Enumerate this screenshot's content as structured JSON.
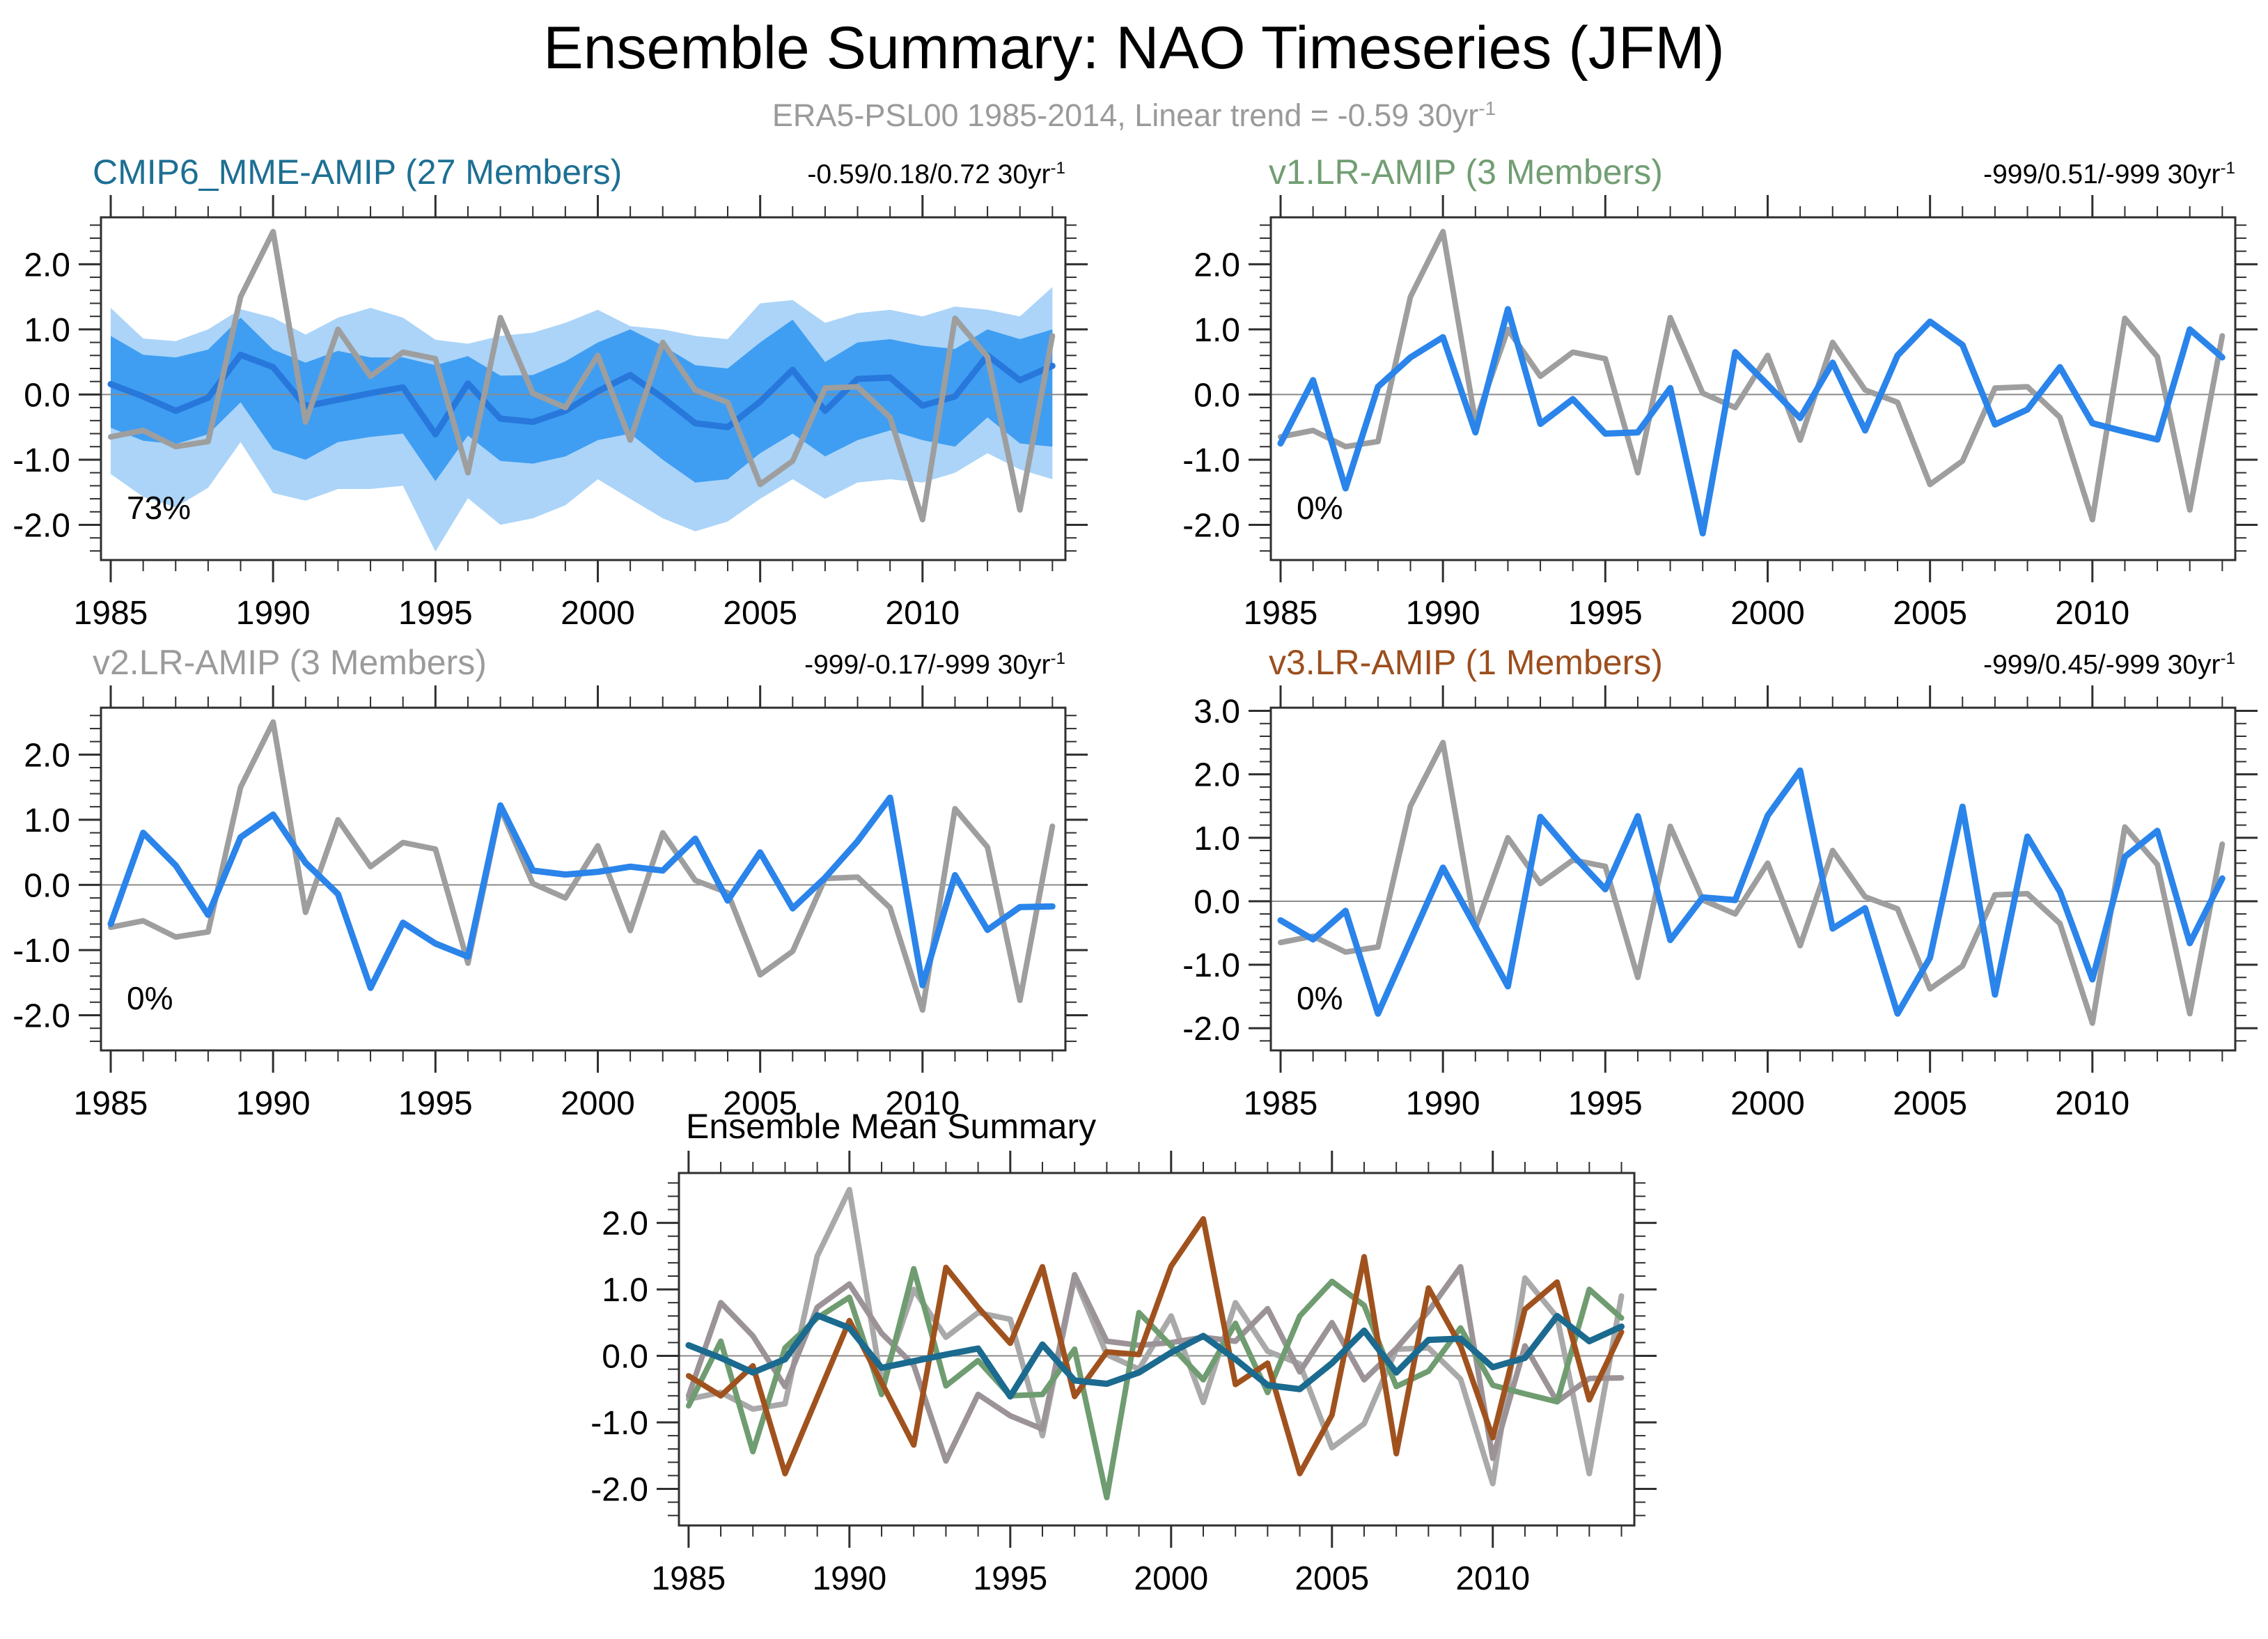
{
  "header": {
    "title": "Ensemble Summary: NAO Timeseries (JFM)",
    "subtitle": "ERA5-PSL00 1985-2014, Linear trend = -0.59 30yr",
    "subtitle_sup": "-1"
  },
  "years": [
    1985,
    1986,
    1987,
    1988,
    1989,
    1990,
    1991,
    1992,
    1993,
    1994,
    1995,
    1996,
    1997,
    1998,
    1999,
    2000,
    2001,
    2002,
    2003,
    2004,
    2005,
    2006,
    2007,
    2008,
    2009,
    2010,
    2011,
    2012,
    2013,
    2014
  ],
  "chart_data": [
    {
      "type": "line",
      "id": "cmip6-mme-amip",
      "title": "CMIP6_MME-AMIP (27 Members)",
      "title_color": "#1d6f93",
      "trend": "-0.59/0.18/0.72 30yr",
      "trend_sup": "-1",
      "pct_label": "73%",
      "ylim": [
        -2.54,
        2.72
      ],
      "yticks": [
        -2,
        -1,
        0,
        1,
        2
      ],
      "xticks": [
        1985,
        1990,
        1995,
        2000,
        2005,
        2010
      ],
      "bands": [
        {
          "name": "ensemble-spread-outer",
          "color": "#abd4f8",
          "hi": [
            1.33,
            0.86,
            0.82,
            1.0,
            1.31,
            1.18,
            0.92,
            1.18,
            1.33,
            1.18,
            0.84,
            0.78,
            0.9,
            0.95,
            1.1,
            1.3,
            1.05,
            1.0,
            0.9,
            0.85,
            1.4,
            1.45,
            1.1,
            1.25,
            1.3,
            1.2,
            1.35,
            1.3,
            1.2,
            1.65
          ],
          "lo": [
            -1.22,
            -1.57,
            -1.73,
            -1.43,
            -0.73,
            -1.51,
            -1.63,
            -1.45,
            -1.45,
            -1.4,
            -2.41,
            -1.59,
            -2.0,
            -1.9,
            -1.7,
            -1.3,
            -1.6,
            -1.9,
            -2.1,
            -1.95,
            -1.6,
            -1.3,
            -1.6,
            -1.35,
            -1.3,
            -1.35,
            -1.2,
            -0.9,
            -1.15,
            -1.3
          ]
        },
        {
          "name": "ensemble-spread-inner",
          "color": "#3f9ef2",
          "hi": [
            0.9,
            0.61,
            0.57,
            0.69,
            1.18,
            0.69,
            0.49,
            0.67,
            0.57,
            0.57,
            0.45,
            0.59,
            0.29,
            0.3,
            0.51,
            0.8,
            1.0,
            0.75,
            0.45,
            0.4,
            0.8,
            1.15,
            0.5,
            0.8,
            0.85,
            0.75,
            0.7,
            1.0,
            0.85,
            1.0
          ],
          "lo": [
            -0.51,
            -0.71,
            -0.76,
            -0.61,
            -0.12,
            -0.84,
            -1.0,
            -0.73,
            -0.65,
            -0.6,
            -1.33,
            -0.63,
            -1.02,
            -1.06,
            -0.95,
            -0.7,
            -0.6,
            -1.0,
            -1.35,
            -1.3,
            -0.9,
            -0.6,
            -0.95,
            -0.7,
            -0.55,
            -0.7,
            -0.8,
            -0.35,
            -0.75,
            -0.8
          ]
        }
      ],
      "series": [
        {
          "name": "ensemble-mean",
          "color": "#2878dc",
          "width": 9,
          "values": [
            0.16,
            -0.03,
            -0.25,
            -0.05,
            0.61,
            0.42,
            -0.18,
            -0.08,
            0.02,
            0.11,
            -0.61,
            0.17,
            -0.37,
            -0.42,
            -0.25,
            0.05,
            0.3,
            -0.05,
            -0.44,
            -0.5,
            -0.11,
            0.38,
            -0.25,
            0.24,
            0.26,
            -0.17,
            -0.03,
            0.6,
            0.22,
            0.44
          ]
        },
        {
          "name": "era5-obs",
          "color": "#9e9e9e",
          "width": 8,
          "values": [
            -0.65,
            -0.55,
            -0.8,
            -0.72,
            1.5,
            2.5,
            -0.42,
            1.0,
            0.28,
            0.65,
            0.55,
            -1.2,
            1.18,
            0.02,
            -0.2,
            0.6,
            -0.7,
            0.8,
            0.07,
            -0.12,
            -1.38,
            -1.02,
            0.1,
            0.12,
            -0.35,
            -1.92,
            1.17,
            0.58,
            -1.77,
            0.9
          ]
        }
      ]
    },
    {
      "type": "line",
      "id": "v1-lr-amip",
      "title": "v1.LR-AMIP (3 Members)",
      "title_color": "#719e73",
      "trend": "-999/0.51/-999 30yr",
      "trend_sup": "-1",
      "pct_label": "0%",
      "ylim": [
        -2.54,
        2.72
      ],
      "yticks": [
        -2,
        -1,
        0,
        1,
        2
      ],
      "xticks": [
        1985,
        1990,
        1995,
        2000,
        2005,
        2010
      ],
      "bands": [],
      "series": [
        {
          "name": "era5-obs",
          "color": "#9e9e9e",
          "width": 8,
          "values": [
            -0.65,
            -0.55,
            -0.8,
            -0.72,
            1.5,
            2.5,
            -0.42,
            1.0,
            0.28,
            0.65,
            0.55,
            -1.2,
            1.18,
            0.02,
            -0.2,
            0.6,
            -0.7,
            0.8,
            0.07,
            -0.12,
            -1.38,
            -1.02,
            0.1,
            0.12,
            -0.35,
            -1.92,
            1.17,
            0.58,
            -1.77,
            0.9
          ]
        },
        {
          "name": "v1-ensemble-mean",
          "color": "#2a84ea",
          "width": 9,
          "values": [
            -0.75,
            0.22,
            -1.44,
            0.12,
            0.57,
            0.88,
            -0.58,
            1.31,
            -0.45,
            -0.07,
            -0.6,
            -0.58,
            0.1,
            -2.13,
            0.65,
            0.15,
            -0.36,
            0.49,
            -0.55,
            0.6,
            1.12,
            0.76,
            -0.46,
            -0.23,
            0.42,
            -0.44,
            -0.57,
            -0.69,
            1.0,
            0.57
          ]
        }
      ]
    },
    {
      "type": "line",
      "id": "v2-lr-amip",
      "title": "v2.LR-AMIP (3 Members)",
      "title_color": "#9b9b9b",
      "trend": "-999/-0.17/-999 30yr",
      "trend_sup": "-1",
      "pct_label": "0%",
      "ylim": [
        -2.54,
        2.72
      ],
      "yticks": [
        -2,
        -1,
        0,
        1,
        2
      ],
      "xticks": [
        1985,
        1990,
        1995,
        2000,
        2005,
        2010
      ],
      "bands": [],
      "series": [
        {
          "name": "era5-obs",
          "color": "#9e9e9e",
          "width": 8,
          "values": [
            -0.65,
            -0.55,
            -0.8,
            -0.72,
            1.5,
            2.5,
            -0.42,
            1.0,
            0.28,
            0.65,
            0.55,
            -1.2,
            1.18,
            0.02,
            -0.2,
            0.6,
            -0.7,
            0.8,
            0.07,
            -0.12,
            -1.38,
            -1.02,
            0.1,
            0.12,
            -0.35,
            -1.92,
            1.17,
            0.58,
            -1.77,
            0.9
          ]
        },
        {
          "name": "v2-ensemble-mean",
          "color": "#2a84ea",
          "width": 9,
          "values": [
            -0.6,
            0.8,
            0.3,
            -0.46,
            0.73,
            1.08,
            0.34,
            -0.14,
            -1.58,
            -0.58,
            -0.9,
            -1.1,
            1.22,
            0.22,
            0.16,
            0.2,
            0.28,
            0.22,
            0.71,
            -0.24,
            0.5,
            -0.36,
            0.11,
            0.67,
            1.34,
            -1.54,
            0.15,
            -0.69,
            -0.34,
            -0.33
          ]
        }
      ]
    },
    {
      "type": "line",
      "id": "v3-lr-amip",
      "title": "v3.LR-AMIP (1 Members)",
      "title_color": "#9c4e1d",
      "trend": "-999/0.45/-999 30yr",
      "trend_sup": "-1",
      "pct_label": "0%",
      "ylim": [
        -2.35,
        3.05
      ],
      "yticks": [
        -2,
        -1,
        0,
        1,
        2,
        3
      ],
      "xticks": [
        1985,
        1990,
        1995,
        2000,
        2005,
        2010
      ],
      "bands": [],
      "series": [
        {
          "name": "era5-obs",
          "color": "#9e9e9e",
          "width": 8,
          "values": [
            -0.65,
            -0.55,
            -0.8,
            -0.72,
            1.5,
            2.5,
            -0.42,
            1.0,
            0.28,
            0.65,
            0.55,
            -1.2,
            1.18,
            0.02,
            -0.2,
            0.6,
            -0.7,
            0.8,
            0.07,
            -0.12,
            -1.38,
            -1.02,
            0.1,
            0.12,
            -0.35,
            -1.92,
            1.17,
            0.58,
            -1.77,
            0.9
          ]
        },
        {
          "name": "v3-ensemble-mean",
          "color": "#2a84ea",
          "width": 9,
          "values": [
            -0.3,
            -0.6,
            -0.15,
            -1.77,
            -0.62,
            0.53,
            -0.4,
            -1.34,
            1.33,
            0.73,
            0.19,
            1.34,
            -0.61,
            0.06,
            0.02,
            1.35,
            2.06,
            -0.43,
            -0.11,
            -1.77,
            -0.89,
            1.49,
            -1.47,
            1.02,
            0.15,
            -1.23,
            0.7,
            1.11,
            -0.66,
            0.36
          ]
        }
      ]
    },
    {
      "type": "line",
      "id": "ensemble-mean-summary",
      "title": "Ensemble Mean Summary",
      "title_color": "#000000",
      "trend": "",
      "trend_sup": "",
      "pct_label": "",
      "ylim": [
        -2.55,
        2.75
      ],
      "yticks": [
        -2,
        -1,
        0,
        1,
        2
      ],
      "xticks": [
        1985,
        1990,
        1995,
        2000,
        2005,
        2010
      ],
      "bands": [],
      "series": [
        {
          "name": "era5-obs",
          "color": "#a9a9a9",
          "width": 8,
          "values": [
            -0.65,
            -0.55,
            -0.8,
            -0.72,
            1.5,
            2.5,
            -0.42,
            1.0,
            0.28,
            0.65,
            0.55,
            -1.2,
            1.18,
            0.02,
            -0.2,
            0.6,
            -0.7,
            0.8,
            0.07,
            -0.12,
            -1.38,
            -1.02,
            0.1,
            0.12,
            -0.35,
            -1.92,
            1.17,
            0.58,
            -1.77,
            0.9
          ]
        },
        {
          "name": "v2-mean",
          "color": "#9b9398",
          "width": 8,
          "values": [
            -0.6,
            0.8,
            0.3,
            -0.46,
            0.73,
            1.08,
            0.34,
            -0.14,
            -1.58,
            -0.58,
            -0.9,
            -1.1,
            1.22,
            0.22,
            0.16,
            0.2,
            0.28,
            0.22,
            0.71,
            -0.24,
            0.5,
            -0.36,
            0.11,
            0.67,
            1.34,
            -1.54,
            0.15,
            -0.69,
            -0.34,
            -0.33
          ]
        },
        {
          "name": "v1-mean",
          "color": "#6f9c70",
          "width": 8,
          "values": [
            -0.75,
            0.22,
            -1.44,
            0.12,
            0.57,
            0.88,
            -0.58,
            1.31,
            -0.45,
            -0.07,
            -0.6,
            -0.58,
            0.1,
            -2.13,
            0.65,
            0.15,
            -0.36,
            0.49,
            -0.55,
            0.6,
            1.12,
            0.76,
            -0.46,
            -0.23,
            0.42,
            -0.44,
            -0.57,
            -0.69,
            1.0,
            0.57
          ]
        },
        {
          "name": "v3-mean",
          "color": "#a0521e",
          "width": 8,
          "values": [
            -0.3,
            -0.6,
            -0.15,
            -1.77,
            -0.62,
            0.53,
            -0.4,
            -1.34,
            1.33,
            0.73,
            0.19,
            1.34,
            -0.61,
            0.06,
            0.02,
            1.35,
            2.06,
            -0.43,
            -0.11,
            -1.77,
            -0.89,
            1.49,
            -1.47,
            1.02,
            0.15,
            -1.23,
            0.7,
            1.11,
            -0.66,
            0.36
          ]
        },
        {
          "name": "cmip6-mme-mean",
          "color": "#1b6a8f",
          "width": 9,
          "values": [
            0.16,
            -0.03,
            -0.25,
            -0.05,
            0.61,
            0.42,
            -0.18,
            -0.08,
            0.02,
            0.11,
            -0.61,
            0.17,
            -0.37,
            -0.42,
            -0.25,
            0.05,
            0.3,
            -0.05,
            -0.44,
            -0.5,
            -0.11,
            0.38,
            -0.25,
            0.24,
            0.26,
            -0.17,
            -0.03,
            0.6,
            0.22,
            0.44
          ]
        }
      ]
    }
  ]
}
